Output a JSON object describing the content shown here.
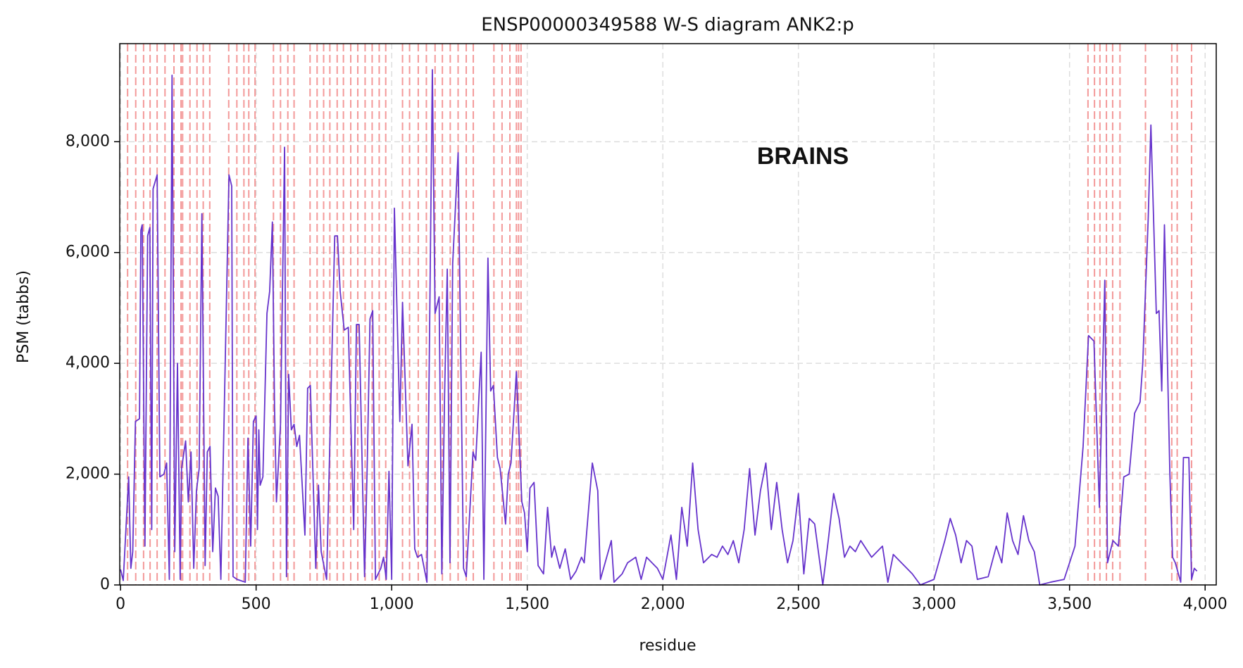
{
  "chart_data": {
    "type": "line",
    "title": "ENSP00000349588 W-S diagram ANK2:p",
    "annotation": "BRAINS",
    "x_label": "residue",
    "y_label": "PSM (tabbs)",
    "xlim": [
      -3,
      4041
    ],
    "ylim": [
      0,
      9770
    ],
    "xticks": [
      0,
      500,
      {
        "value": 1000,
        "label": "1,000"
      },
      {
        "value": 1500,
        "label": "1,500"
      },
      {
        "value": 2000,
        "label": "2,000"
      },
      {
        "value": 2500,
        "label": "2,500"
      },
      {
        "value": 3000,
        "label": "3,000"
      },
      {
        "value": 3500,
        "label": "3,500"
      },
      {
        "value": 4000,
        "label": "4,000"
      }
    ],
    "yticks": [
      0,
      {
        "value": 2000,
        "label": "2,000"
      },
      {
        "value": 4000,
        "label": "4,000"
      },
      {
        "value": 6000,
        "label": "6,000"
      },
      {
        "value": 8000,
        "label": "8,000"
      }
    ],
    "grid": true,
    "marker_color": "#f08080",
    "markers": [
      26,
      56,
      85,
      109,
      135,
      164,
      197,
      223,
      229,
      256,
      282,
      305,
      329,
      399,
      429,
      455,
      473,
      496,
      564,
      590,
      617,
      640,
      699,
      725,
      749,
      772,
      799,
      822,
      849,
      875,
      902,
      928,
      954,
      978,
      1040,
      1066,
      1098,
      1128,
      1160,
      1187,
      1216,
      1245,
      1275,
      1301,
      1377,
      1407,
      1436,
      1460,
      1468,
      1477,
      3568,
      3592,
      3612,
      3636,
      3659,
      3686,
      3780,
      3877,
      3897,
      3950
    ],
    "series": [
      {
        "color": "#6633cc",
        "x": [
          0,
          10,
          30,
          38,
          45,
          55,
          70,
          75,
          80,
          90,
          100,
          108,
          115,
          120,
          135,
          145,
          160,
          170,
          180,
          190,
          200,
          210,
          220,
          225,
          240,
          250,
          260,
          270,
          280,
          290,
          300,
          312,
          320,
          330,
          340,
          350,
          360,
          370,
          400,
          410,
          415,
          430,
          460,
          470,
          480,
          490,
          500,
          505,
          510,
          515,
          525,
          540,
          550,
          560,
          568,
          575,
          590,
          605,
          612,
          620,
          630,
          640,
          650,
          660,
          680,
          690,
          700,
          720,
          730,
          740,
          760,
          790,
          800,
          810,
          825,
          840,
          860,
          870,
          880,
          900,
          910,
          920,
          930,
          940,
          960,
          970,
          980,
          990,
          1000,
          1010,
          1030,
          1040,
          1060,
          1075,
          1085,
          1095,
          1110,
          1130,
          1150,
          1160,
          1175,
          1185,
          1195,
          1205,
          1215,
          1225,
          1245,
          1265,
          1275,
          1300,
          1310,
          1330,
          1340,
          1355,
          1365,
          1375,
          1390,
          1400,
          1420,
          1430,
          1440,
          1460,
          1480,
          1490,
          1500,
          1510,
          1525,
          1540,
          1560,
          1575,
          1590,
          1600,
          1620,
          1640,
          1660,
          1680,
          1700,
          1710,
          1740,
          1760,
          1770,
          1810,
          1820,
          1850,
          1870,
          1900,
          1920,
          1940,
          1960,
          1980,
          2000,
          2030,
          2050,
          2070,
          2090,
          2110,
          2130,
          2150,
          2180,
          2200,
          2220,
          2240,
          2260,
          2280,
          2300,
          2320,
          2340,
          2360,
          2380,
          2400,
          2420,
          2440,
          2460,
          2480,
          2500,
          2520,
          2540,
          2560,
          2590,
          2610,
          2630,
          2650,
          2670,
          2690,
          2710,
          2730,
          2750,
          2770,
          2790,
          2810,
          2830,
          2850,
          2870,
          2900,
          2920,
          2950,
          3000,
          3040,
          3060,
          3080,
          3100,
          3120,
          3140,
          3160,
          3200,
          3230,
          3250,
          3270,
          3290,
          3310,
          3330,
          3350,
          3370,
          3390,
          3430,
          3480,
          3520,
          3550,
          3570,
          3590,
          3610,
          3630,
          3640,
          3660,
          3680,
          3700,
          3720,
          3740,
          3760,
          3770,
          3790,
          3800,
          3820,
          3830,
          3840,
          3850,
          3870,
          3880,
          3890,
          3910,
          3920,
          3940,
          3950,
          3960,
          3970
        ],
        "values": [
          280,
          80,
          1950,
          300,
          600,
          2950,
          3000,
          6400,
          6500,
          700,
          6300,
          6450,
          1000,
          7150,
          7400,
          1950,
          2000,
          2200,
          100,
          9200,
          600,
          4000,
          100,
          2100,
          2600,
          1500,
          2400,
          300,
          1700,
          2100,
          6700,
          350,
          2400,
          2500,
          600,
          1750,
          1600,
          100,
          7400,
          7200,
          150,
          100,
          50,
          2650,
          700,
          2950,
          3050,
          1000,
          2800,
          1800,
          1950,
          4900,
          5300,
          6550,
          3200,
          1500,
          2900,
          7900,
          150,
          3800,
          2800,
          2900,
          2500,
          2700,
          900,
          3550,
          3600,
          300,
          1800,
          600,
          100,
          6300,
          6300,
          5300,
          4600,
          4650,
          1000,
          4700,
          4700,
          150,
          2200,
          4800,
          4950,
          100,
          300,
          500,
          100,
          2050,
          100,
          6800,
          2950,
          5100,
          2150,
          2900,
          650,
          500,
          550,
          50,
          9300,
          4900,
          5200,
          200,
          3400,
          5700,
          400,
          5800,
          7800,
          300,
          150,
          2400,
          2250,
          4200,
          100,
          5900,
          3500,
          3600,
          2300,
          2100,
          1100,
          2000,
          2200,
          3850,
          1500,
          1300,
          600,
          1750,
          1850,
          350,
          200,
          1400,
          500,
          700,
          300,
          650,
          100,
          250,
          500,
          400,
          2200,
          1700,
          100,
          800,
          50,
          200,
          400,
          500,
          100,
          500,
          400,
          300,
          100,
          900,
          100,
          1400,
          700,
          2200,
          1000,
          400,
          550,
          500,
          700,
          550,
          800,
          400,
          1000,
          2100,
          900,
          1700,
          2200,
          1000,
          1850,
          1000,
          400,
          800,
          1650,
          200,
          1200,
          1100,
          0,
          800,
          1650,
          1200,
          500,
          700,
          600,
          800,
          650,
          500,
          600,
          700,
          50,
          550,
          450,
          300,
          200,
          0,
          100,
          800,
          1200,
          900,
          400,
          800,
          700,
          100,
          150,
          700,
          400,
          1300,
          800,
          550,
          1250,
          800,
          600,
          0,
          50,
          100,
          700,
          2500,
          4500,
          4400,
          1400,
          5500,
          400,
          800,
          700,
          1950,
          2000,
          3100,
          3300,
          4000,
          6600,
          8300,
          4900,
          4950,
          3500,
          6500,
          2000,
          500,
          400,
          50,
          2300,
          2300,
          100,
          300,
          250
        ]
      }
    ]
  }
}
